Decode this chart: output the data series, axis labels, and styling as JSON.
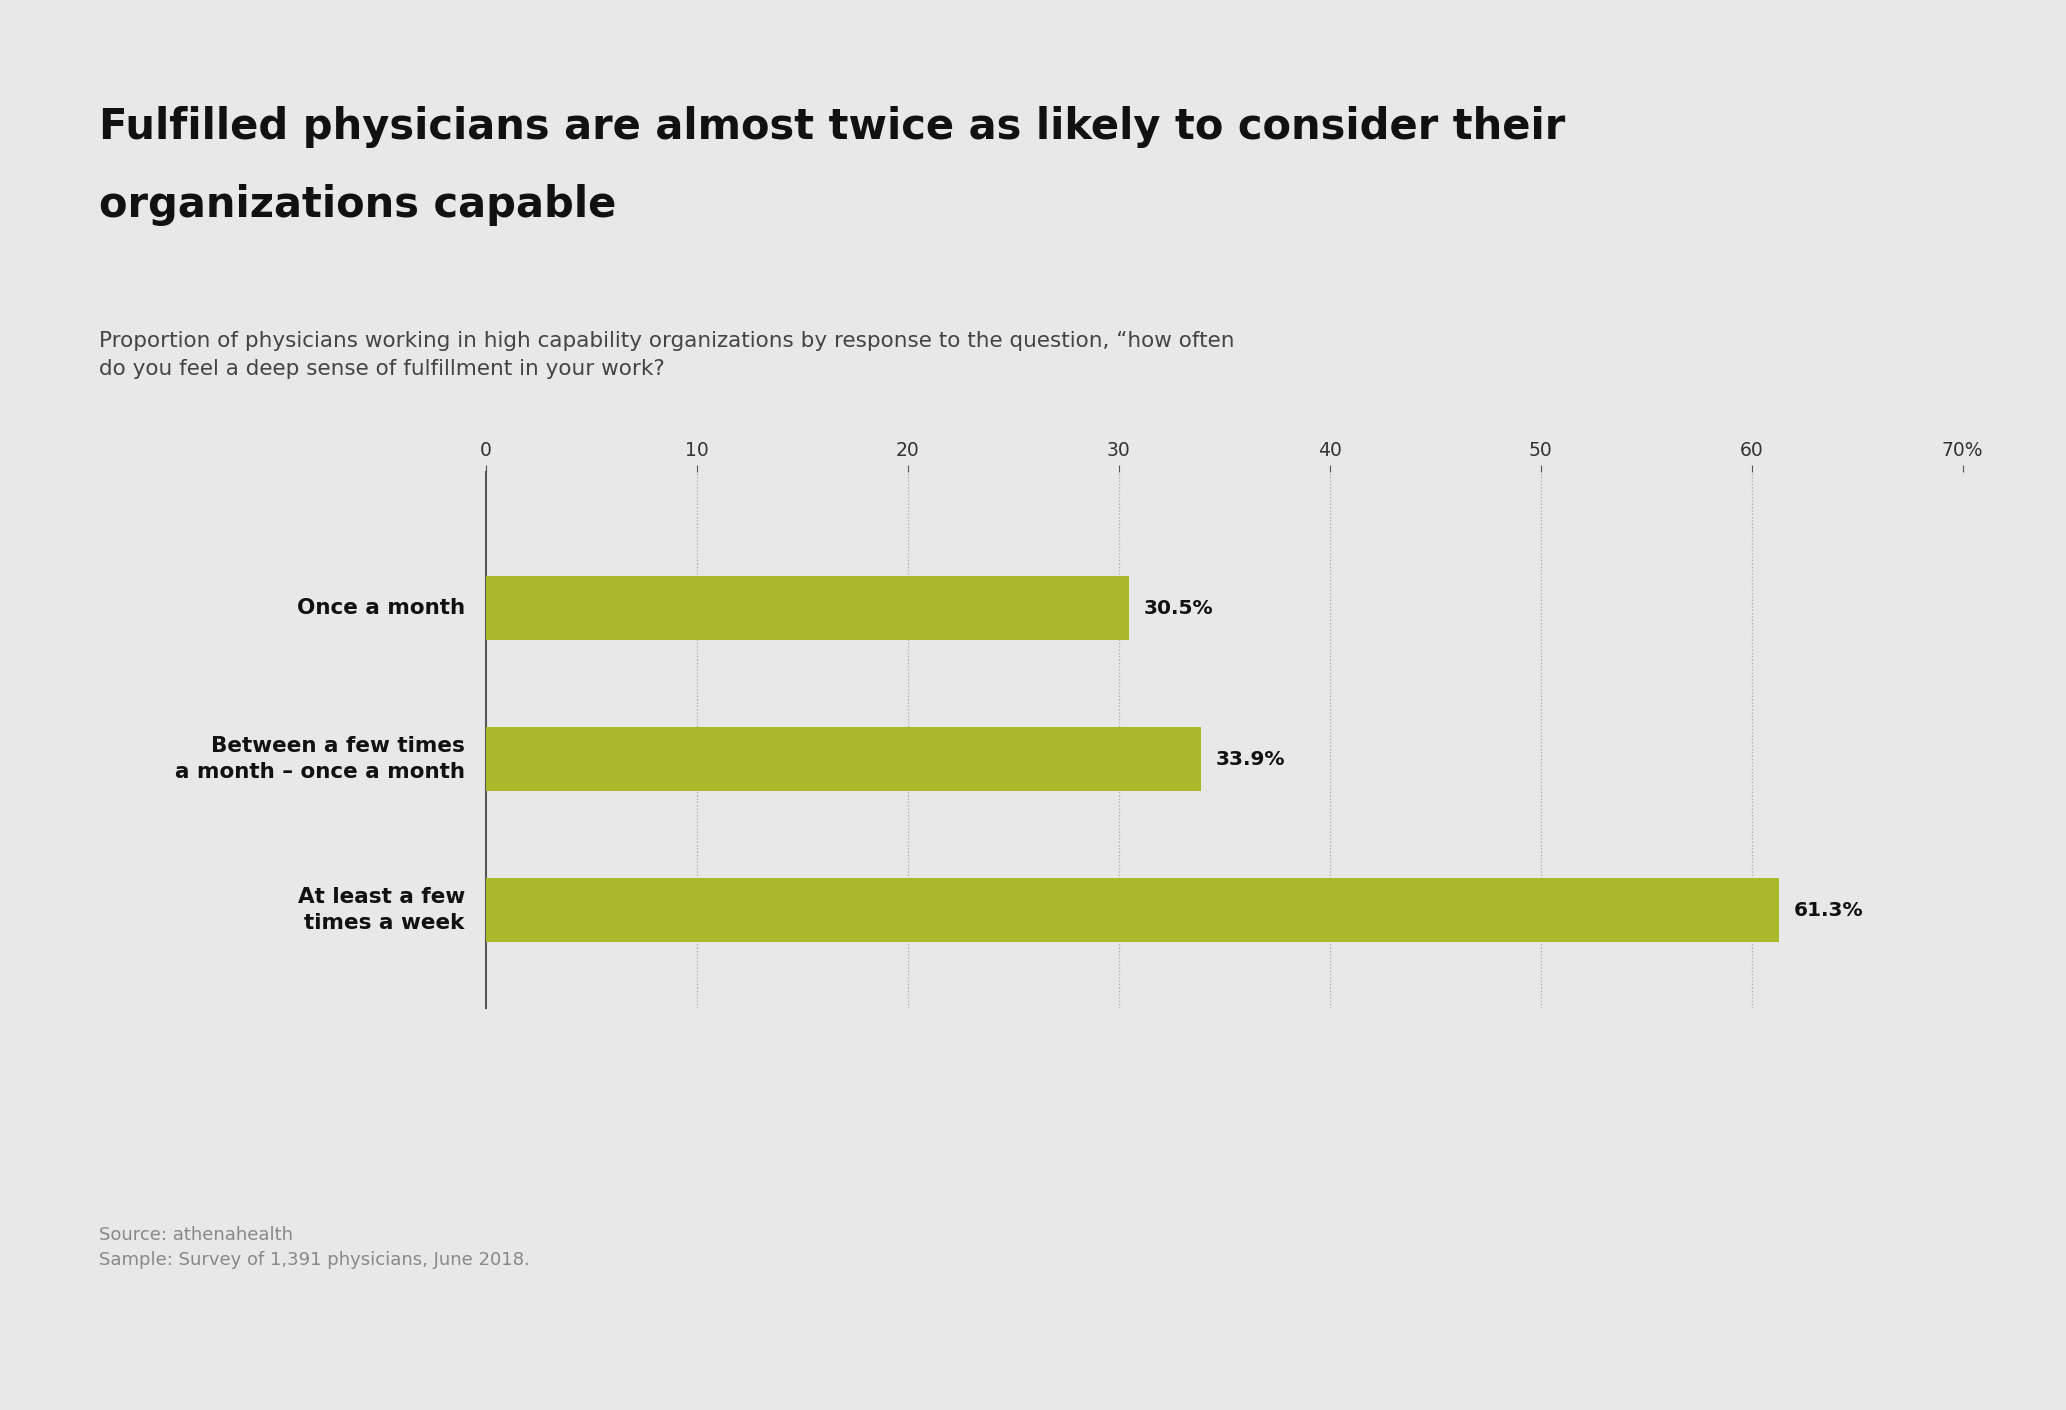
{
  "title_line1": "Fulfilled physicians are almost twice as likely to consider their",
  "title_line2": "organizations capable",
  "subtitle": "Proportion of physicians working in high capability organizations by response to the question, “how often\ndo you feel a deep sense of fulfillment in your work?",
  "categories": [
    "Once a month",
    "Between a few times\na month – once a month",
    "At least a few\ntimes a week"
  ],
  "values": [
    30.5,
    33.9,
    61.3
  ],
  "value_labels": [
    "30.5%",
    "33.9%",
    "61.3%"
  ],
  "bar_color": "#aab82a",
  "background_color": "#e8e8e8",
  "plot_bg_color": "#e8e8e8",
  "title_color": "#111111",
  "subtitle_color": "#444444",
  "label_color": "#111111",
  "value_label_color": "#111111",
  "source_text": "Source: athenahealth\nSample: Survey of 1,391 physicians, June 2018.",
  "source_color": "#888888",
  "xlim": [
    0,
    70
  ],
  "xticks": [
    0,
    10,
    20,
    30,
    40,
    50,
    60,
    70
  ],
  "xtick_labels": [
    "0",
    "10",
    "20",
    "30",
    "40",
    "50",
    "60",
    "70%"
  ],
  "grid_color": "#aaaaaa",
  "axis_line_color": "#555555",
  "title_fontsize": 30,
  "subtitle_fontsize": 15.5,
  "category_fontsize": 15.5,
  "value_fontsize": 14.5,
  "xtick_fontsize": 13.5,
  "source_fontsize": 13
}
